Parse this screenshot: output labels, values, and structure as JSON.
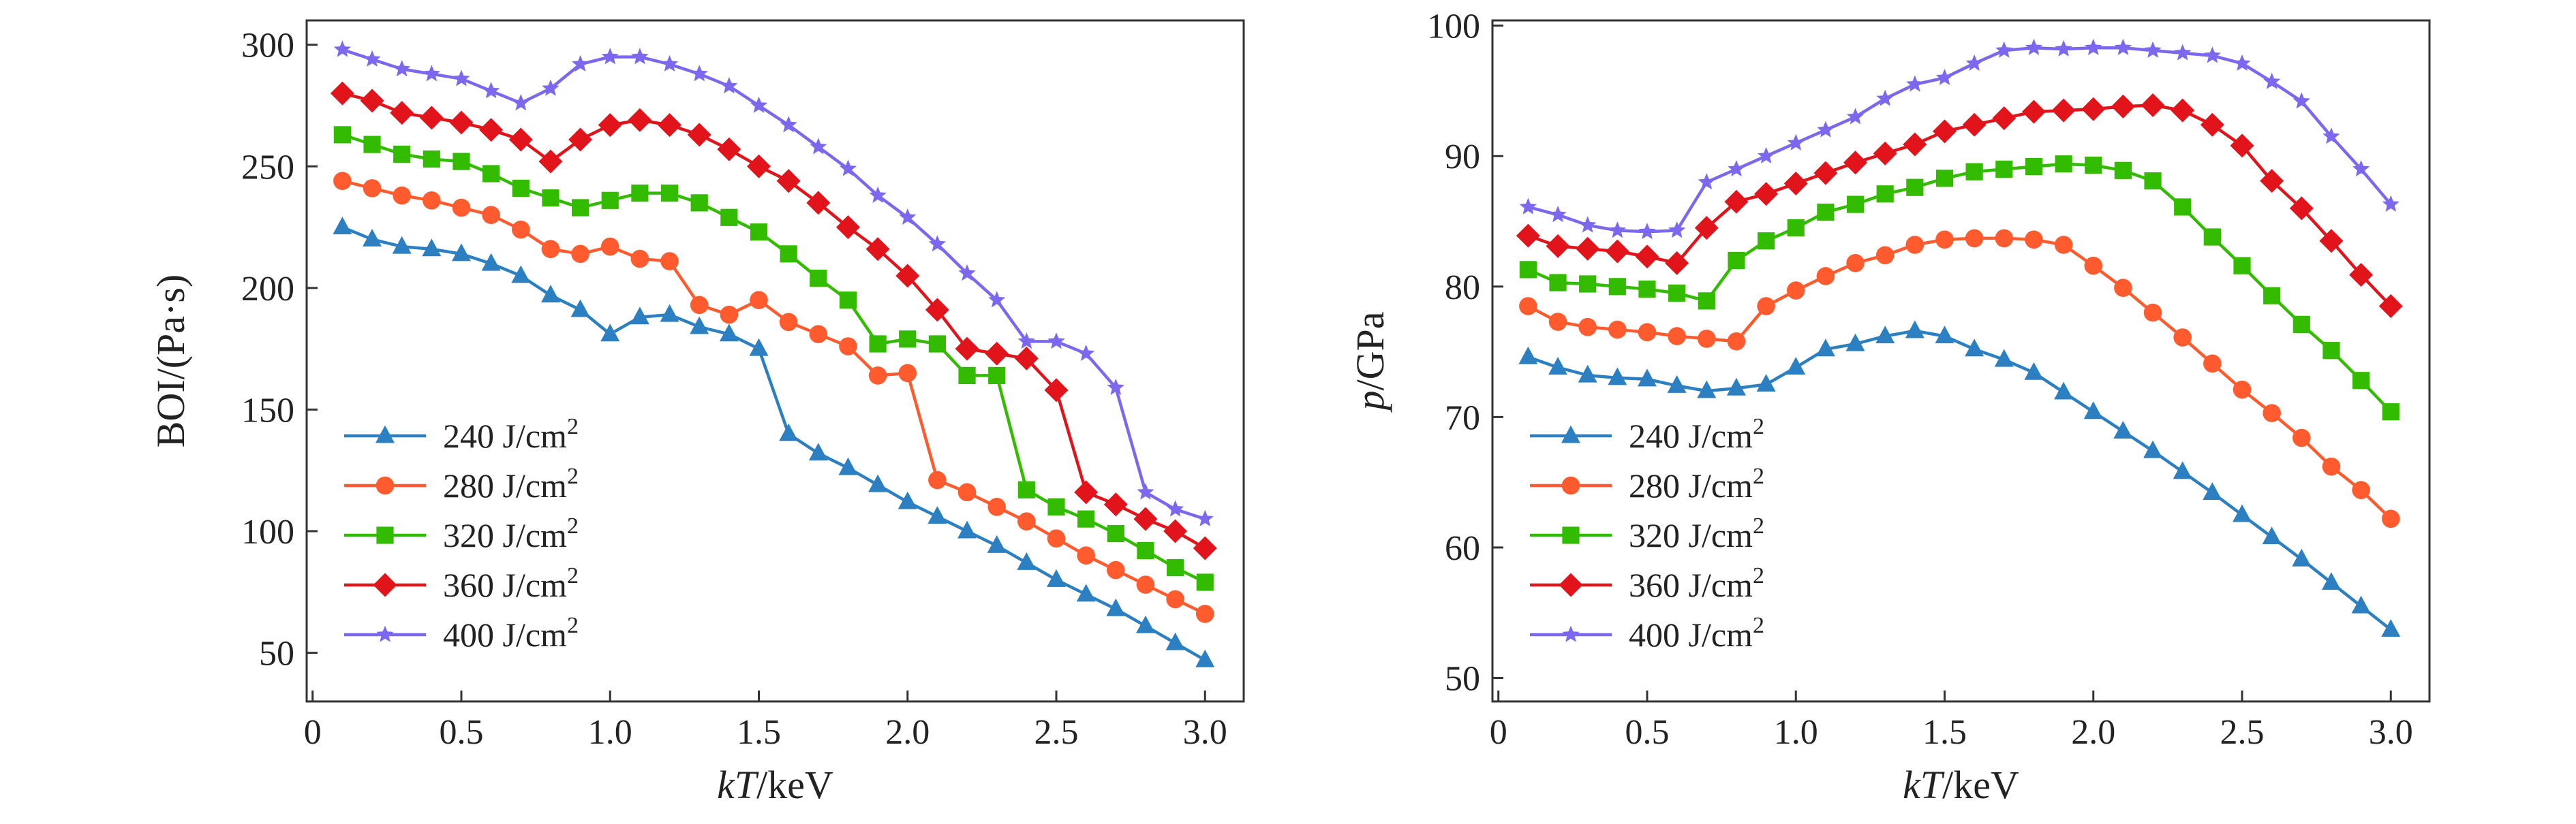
{
  "chart_data": [
    {
      "type": "line",
      "xlabel_italic": "kT",
      "xlabel_rest": "/keV",
      "ylabel": "BOI/(Pa·s)",
      "xlim": [
        -0.02,
        3.13
      ],
      "ylim": [
        30,
        310
      ],
      "xticks": [
        0,
        0.5,
        1.0,
        1.5,
        2.0,
        2.5,
        3.0
      ],
      "xtick_labels": [
        "0",
        "0.5",
        "1.0",
        "1.5",
        "2.0",
        "2.5",
        "3.0"
      ],
      "yticks": [
        50,
        100,
        150,
        200,
        250,
        300
      ],
      "ytick_labels": [
        "50",
        "100",
        "150",
        "200",
        "250",
        "300"
      ],
      "grid": false,
      "legend_position": "lower-left",
      "x": [
        0.1,
        0.2,
        0.3,
        0.4,
        0.5,
        0.6,
        0.7,
        0.8,
        0.9,
        1.0,
        1.1,
        1.2,
        1.3,
        1.4,
        1.5,
        1.6,
        1.7,
        1.8,
        1.9,
        2.0,
        2.1,
        2.2,
        2.3,
        2.4,
        2.5,
        2.6,
        2.7,
        2.8,
        2.9,
        3.0
      ],
      "series": [
        {
          "name": "240 J/cm",
          "sup": "2",
          "color": "#2c7fc0",
          "marker": "triangle",
          "values": [
            225,
            220,
            217,
            216,
            214,
            210,
            205,
            197,
            191,
            181,
            188,
            189,
            184,
            181,
            175,
            140,
            132,
            126,
            119,
            112,
            106,
            100,
            94,
            87,
            80,
            74,
            68,
            61,
            54,
            47
          ]
        },
        {
          "name": "280 J/cm",
          "sup": "2",
          "color": "#ff5b2e",
          "marker": "circle",
          "values": [
            244,
            241,
            238,
            236,
            233,
            230,
            224,
            216,
            214,
            217,
            212,
            211,
            193,
            189,
            195,
            186,
            181,
            176,
            164,
            165,
            121,
            116,
            110,
            104,
            97,
            90,
            84,
            78,
            72,
            66
          ]
        },
        {
          "name": "320 J/cm",
          "sup": "2",
          "color": "#33bb00",
          "marker": "square",
          "values": [
            263,
            259,
            255,
            253,
            252,
            247,
            241,
            237,
            233,
            236,
            239,
            239,
            235,
            229,
            223,
            214,
            204,
            195,
            177,
            179,
            177,
            164,
            164,
            117,
            110,
            105,
            99,
            92,
            85,
            79
          ]
        },
        {
          "name": "360 J/cm",
          "sup": "2",
          "color": "#e0141a",
          "marker": "diamond",
          "values": [
            280,
            277,
            272,
            270,
            268,
            265,
            261,
            252,
            261,
            267,
            269,
            267,
            263,
            257,
            250,
            244,
            235,
            225,
            216,
            205,
            191,
            175,
            173,
            171,
            158,
            116,
            111,
            105,
            100,
            93
          ]
        },
        {
          "name": "400 J/cm",
          "sup": "2",
          "color": "#7b68ee",
          "marker": "star",
          "values": [
            298,
            294,
            290,
            288,
            286,
            281,
            276,
            282,
            292,
            295,
            295,
            292,
            288,
            283,
            275,
            267,
            258,
            249,
            238,
            229,
            218,
            206,
            195,
            178,
            178,
            173,
            159,
            116,
            109,
            105
          ]
        }
      ]
    },
    {
      "type": "line",
      "xlabel_italic": "kT",
      "xlabel_rest": "/keV",
      "ylabel_italic": "p",
      "ylabel_rest": "/GPa",
      "xlim": [
        -0.02,
        3.13
      ],
      "ylim": [
        48.2,
        100.4
      ],
      "xticks": [
        0,
        0.5,
        1.0,
        1.5,
        2.0,
        2.5,
        3.0
      ],
      "xtick_labels": [
        "0",
        "0.5",
        "1.0",
        "1.5",
        "2.0",
        "2.5",
        "3.0"
      ],
      "yticks": [
        50,
        60,
        70,
        80,
        90,
        100
      ],
      "ytick_labels": [
        "50",
        "60",
        "70",
        "80",
        "90",
        "100"
      ],
      "grid": false,
      "legend_position": "lower-left",
      "x": [
        0.1,
        0.2,
        0.3,
        0.4,
        0.5,
        0.6,
        0.7,
        0.8,
        0.9,
        1.0,
        1.1,
        1.2,
        1.3,
        1.4,
        1.5,
        1.6,
        1.7,
        1.8,
        1.9,
        2.0,
        2.1,
        2.2,
        2.3,
        2.4,
        2.5,
        2.6,
        2.7,
        2.8,
        2.9,
        3.0
      ],
      "series": [
        {
          "name": "240 J/cm",
          "sup": "2",
          "color": "#2c7fc0",
          "marker": "triangle",
          "values": [
            74.6,
            73.8,
            73.2,
            73.0,
            72.9,
            72.4,
            72.0,
            72.2,
            72.5,
            73.8,
            75.2,
            75.6,
            76.2,
            76.6,
            76.2,
            75.2,
            74.4,
            73.4,
            71.9,
            70.4,
            68.9,
            67.4,
            65.8,
            64.2,
            62.5,
            60.8,
            59.1,
            57.3,
            55.5,
            53.7
          ]
        },
        {
          "name": "280 J/cm",
          "sup": "2",
          "color": "#ff5b2e",
          "marker": "circle",
          "values": [
            78.5,
            77.3,
            76.9,
            76.7,
            76.5,
            76.2,
            76.0,
            75.8,
            78.5,
            79.7,
            80.8,
            81.8,
            82.4,
            83.2,
            83.6,
            83.7,
            83.7,
            83.6,
            83.2,
            81.6,
            79.9,
            78.0,
            76.1,
            74.1,
            72.1,
            70.3,
            68.4,
            66.2,
            64.4,
            62.2
          ]
        },
        {
          "name": "320 J/cm",
          "sup": "2",
          "color": "#33bb00",
          "marker": "square",
          "values": [
            81.3,
            80.3,
            80.2,
            80.0,
            79.8,
            79.5,
            78.9,
            82.0,
            83.5,
            84.5,
            85.7,
            86.3,
            87.1,
            87.6,
            88.3,
            88.8,
            89.0,
            89.2,
            89.4,
            89.3,
            88.9,
            88.1,
            86.1,
            83.8,
            81.6,
            79.3,
            77.1,
            75.1,
            72.8,
            70.4
          ]
        },
        {
          "name": "360 J/cm",
          "sup": "2",
          "color": "#e0141a",
          "marker": "diamond",
          "values": [
            83.9,
            83.1,
            82.9,
            82.7,
            82.3,
            81.8,
            84.5,
            86.5,
            87.1,
            87.9,
            88.7,
            89.5,
            90.2,
            90.9,
            91.9,
            92.4,
            92.9,
            93.4,
            93.5,
            93.6,
            93.8,
            93.9,
            93.5,
            92.4,
            90.8,
            88.1,
            86.0,
            83.5,
            80.9,
            78.5
          ]
        },
        {
          "name": "400 J/cm",
          "sup": "2",
          "color": "#7b68ee",
          "marker": "star",
          "values": [
            86.1,
            85.5,
            84.7,
            84.3,
            84.2,
            84.3,
            88.0,
            89.0,
            90.0,
            91.0,
            92.0,
            93.0,
            94.4,
            95.5,
            96.0,
            97.1,
            98.1,
            98.3,
            98.2,
            98.3,
            98.3,
            98.1,
            97.9,
            97.7,
            97.1,
            95.7,
            94.2,
            91.5,
            89.0,
            86.3
          ]
        }
      ]
    }
  ]
}
